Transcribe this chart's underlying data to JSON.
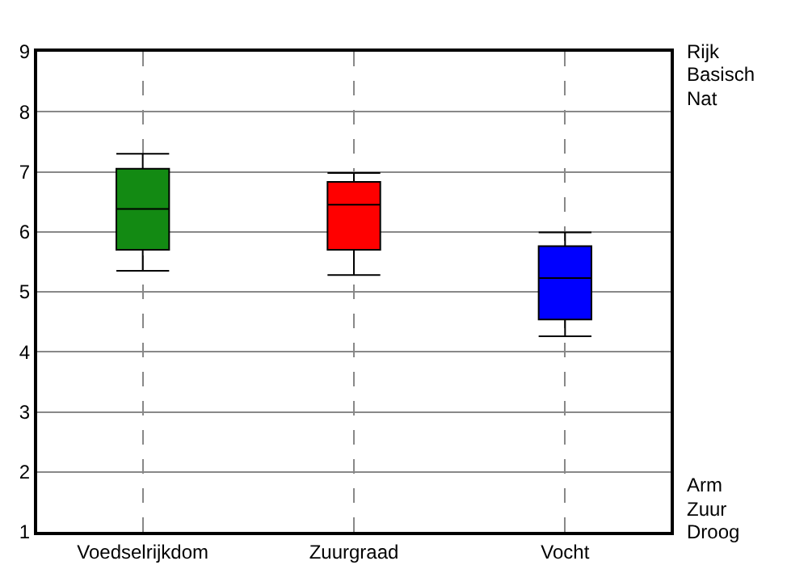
{
  "chart_data": {
    "type": "box",
    "categories": [
      "Voedselrijkdom",
      "Zuurgraad",
      "Vocht"
    ],
    "boxes": [
      {
        "low": 5.35,
        "q1": 5.7,
        "median": 6.38,
        "q3": 7.05,
        "high": 7.3
      },
      {
        "low": 5.28,
        "q1": 5.7,
        "median": 6.45,
        "q3": 6.83,
        "high": 6.98
      },
      {
        "low": 4.26,
        "q1": 4.54,
        "median": 5.23,
        "q3": 5.76,
        "high": 5.99
      }
    ],
    "colors": [
      "#138a13",
      "#ff0000",
      "#0000ff"
    ],
    "ylim": [
      1,
      9
    ],
    "yticks": [
      1,
      2,
      3,
      4,
      5,
      6,
      7,
      8,
      9
    ],
    "grid": true,
    "annotations": [
      "Rijk",
      "Basisch",
      "Nat",
      "Arm",
      "Zuur",
      "Droog"
    ]
  }
}
